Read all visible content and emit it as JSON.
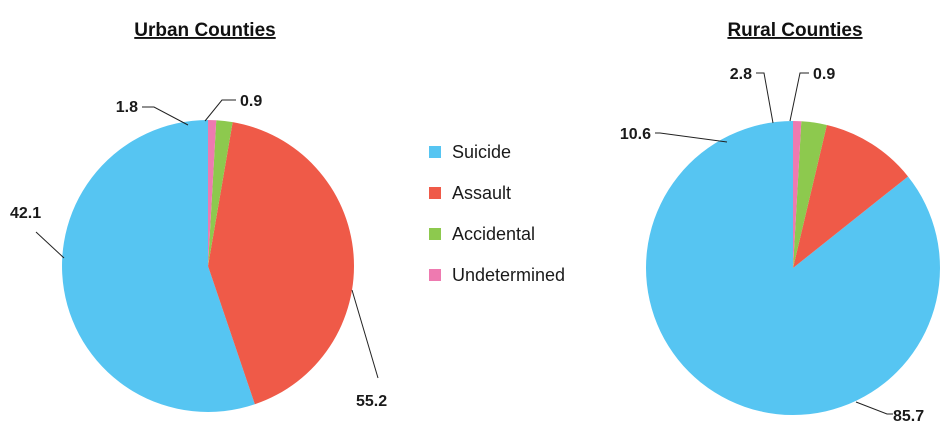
{
  "legend": [
    {
      "label": "Suicide",
      "color": "#56C5F2"
    },
    {
      "label": "Assault",
      "color": "#EF5A48"
    },
    {
      "label": "Accidental",
      "color": "#8DC94E"
    },
    {
      "label": "Undetermined",
      "color": "#EE7AB0"
    }
  ],
  "chart_data": [
    {
      "type": "pie",
      "title": "Urban Counties",
      "categories": [
        "Suicide",
        "Assault",
        "Accidental",
        "Undetermined"
      ],
      "values": [
        55.2,
        42.1,
        1.8,
        0.9
      ],
      "labels": [
        "55.2",
        "42.1",
        "1.8",
        "0.9"
      ],
      "legend_position": "center"
    },
    {
      "type": "pie",
      "title": "Rural Counties",
      "categories": [
        "Suicide",
        "Assault",
        "Accidental",
        "Undetermined"
      ],
      "values": [
        85.7,
        10.6,
        2.8,
        0.9
      ],
      "labels": [
        "85.7",
        "10.6",
        "2.8",
        "0.9"
      ],
      "legend_position": "center"
    }
  ]
}
